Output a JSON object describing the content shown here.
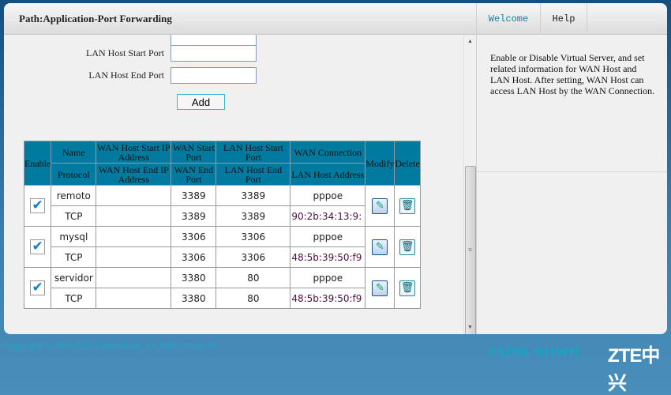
{
  "header": {
    "path": "Path:Application-Port Forwarding",
    "tabs": [
      {
        "label": "Welcome",
        "color": "#1a7fa0"
      },
      {
        "label": "Help",
        "color": "#222"
      }
    ]
  },
  "form": {
    "lan_start_label": "LAN Host Start Port",
    "lan_start_value": "",
    "lan_end_label": "LAN Host End Port",
    "lan_end_value": "",
    "add_label": "Add"
  },
  "table": {
    "headers_top": [
      "Enable",
      "Name",
      "WAN Host Start IP Address",
      "WAN Start Port",
      "LAN Host Start Port",
      "WAN Connection",
      "Modify",
      "Delete"
    ],
    "headers_bottom": [
      "Protocol",
      "WAN Host End IP Address",
      "WAN End Port",
      "LAN Host End Port",
      "LAN Host Address"
    ],
    "rows": [
      {
        "enabled": true,
        "name": "remoto",
        "protocol": "TCP",
        "wan_start_ip": "",
        "wan_end_ip": "",
        "wan_start_port": "3389",
        "wan_end_port": "3389",
        "lan_start_port": "3389",
        "lan_end_port": "3389",
        "wan_connection": "pppoe",
        "lan_host_address": "90:2b:34:13:9:"
      },
      {
        "enabled": true,
        "name": "mysql",
        "protocol": "TCP",
        "wan_start_ip": "",
        "wan_end_ip": "",
        "wan_start_port": "3306",
        "wan_end_port": "3306",
        "lan_start_port": "3306",
        "lan_end_port": "3306",
        "wan_connection": "pppoe",
        "lan_host_address": "48:5b:39:50:f9"
      },
      {
        "enabled": true,
        "name": "servidor",
        "protocol": "TCP",
        "wan_start_ip": "",
        "wan_end_ip": "",
        "wan_start_port": "3380",
        "wan_end_port": "3380",
        "lan_start_port": "80",
        "lan_end_port": "80",
        "wan_connection": "pppoe",
        "lan_host_address": "48:5b:39:50:f9"
      }
    ]
  },
  "help_text": "Enable or Disable Virtual Server, and set related information for WAN Host and LAN Host. After setting, WAN Host can access LAN Host by the WAN Connection.",
  "footer": {
    "copyright": "Copyright © 2011 ZTE Corporation. All rights reserved.",
    "model": "ZXDSL 931WII",
    "logo": "ZTE中兴"
  }
}
